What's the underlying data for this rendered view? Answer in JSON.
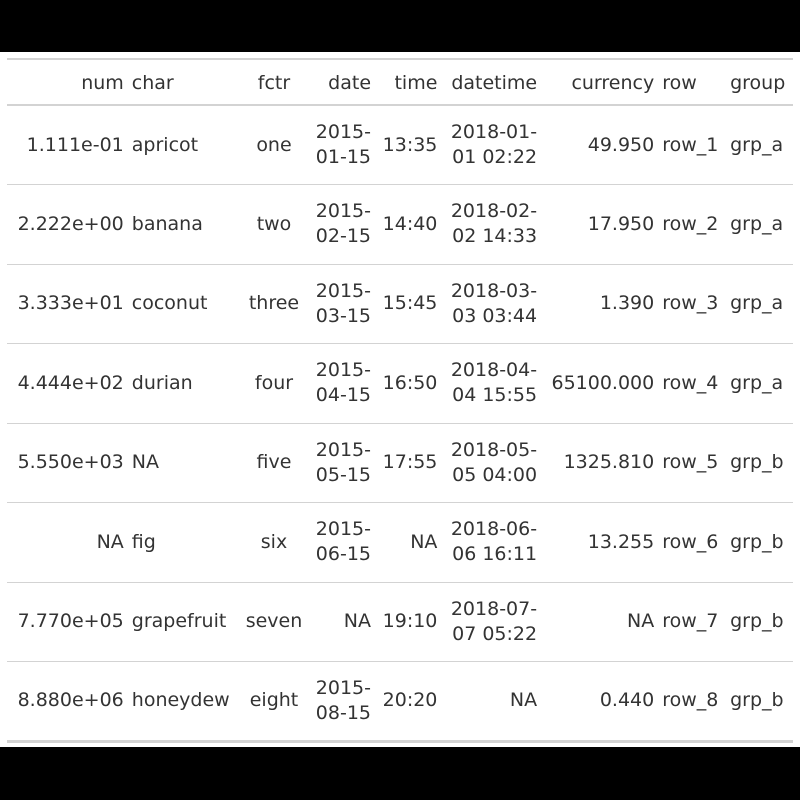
{
  "table": {
    "headers": {
      "num": "num",
      "char": "char",
      "fctr": "fctr",
      "date": "date",
      "time": "time",
      "datetime": "datetime",
      "currency": "currency",
      "row": "row",
      "group": "group"
    },
    "rows": [
      {
        "num": "1.111e-01",
        "char": "apricot",
        "fctr": "one",
        "date": [
          "2015-",
          "01-15"
        ],
        "time": "13:35",
        "datetime": [
          "2018-01-",
          "01 02:22"
        ],
        "currency": "49.950",
        "row": "row_1",
        "group": "grp_a"
      },
      {
        "num": "2.222e+00",
        "char": "banana",
        "fctr": "two",
        "date": [
          "2015-",
          "02-15"
        ],
        "time": "14:40",
        "datetime": [
          "2018-02-",
          "02 14:33"
        ],
        "currency": "17.950",
        "row": "row_2",
        "group": "grp_a"
      },
      {
        "num": "3.333e+01",
        "char": "coconut",
        "fctr": "three",
        "date": [
          "2015-",
          "03-15"
        ],
        "time": "15:45",
        "datetime": [
          "2018-03-",
          "03 03:44"
        ],
        "currency": "1.390",
        "row": "row_3",
        "group": "grp_a"
      },
      {
        "num": "4.444e+02",
        "char": "durian",
        "fctr": "four",
        "date": [
          "2015-",
          "04-15"
        ],
        "time": "16:50",
        "datetime": [
          "2018-04-",
          "04 15:55"
        ],
        "currency": "65100.000",
        "row": "row_4",
        "group": "grp_a"
      },
      {
        "num": "5.550e+03",
        "char": "NA",
        "fctr": "five",
        "date": [
          "2015-",
          "05-15"
        ],
        "time": "17:55",
        "datetime": [
          "2018-05-",
          "05 04:00"
        ],
        "currency": "1325.810",
        "row": "row_5",
        "group": "grp_b"
      },
      {
        "num": "NA",
        "char": "fig",
        "fctr": "six",
        "date": [
          "2015-",
          "06-15"
        ],
        "time": "NA",
        "datetime": [
          "2018-06-",
          "06 16:11"
        ],
        "currency": "13.255",
        "row": "row_6",
        "group": "grp_b"
      },
      {
        "num": "7.770e+05",
        "char": "grapefruit",
        "fctr": "seven",
        "date": [
          "NA"
        ],
        "time": "19:10",
        "datetime": [
          "2018-07-",
          "07 05:22"
        ],
        "currency": "NA",
        "row": "row_7",
        "group": "grp_b"
      },
      {
        "num": "8.880e+06",
        "char": "honeydew",
        "fctr": "eight",
        "date": [
          "2015-",
          "08-15"
        ],
        "time": "20:20",
        "datetime": [
          "NA"
        ],
        "currency": "0.440",
        "row": "row_8",
        "group": "grp_b"
      }
    ]
  }
}
